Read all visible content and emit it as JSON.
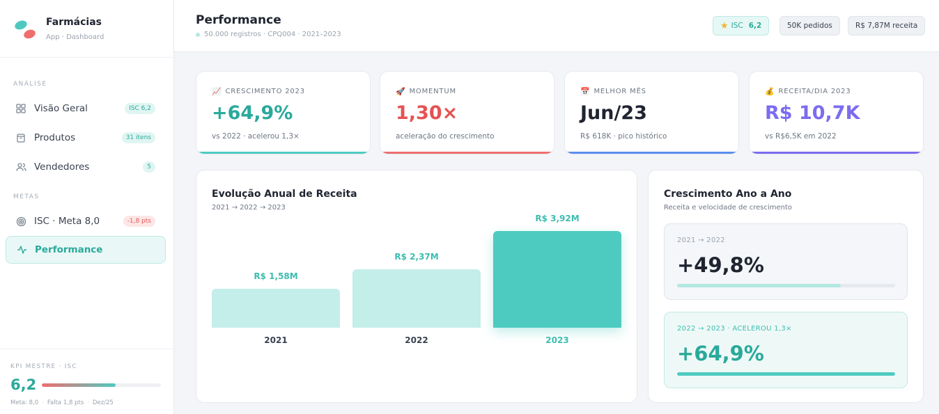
{
  "brand": {
    "name": "Farmácias",
    "subtitle": "App · Dashboard",
    "logo_icon": "pill-logo-icon"
  },
  "sidebar": {
    "sections": {
      "analise": "ANÁLISE",
      "metas": "METAS"
    },
    "items": [
      {
        "label": "Visão Geral",
        "icon": "grid-icon",
        "badge": "ISC 6,2",
        "badge_tone": "teal"
      },
      {
        "label": "Produtos",
        "icon": "package-icon",
        "badge": "31 itens",
        "badge_tone": "teal"
      },
      {
        "label": "Vendedores",
        "icon": "users-icon",
        "badge": "5",
        "badge_tone": "teal"
      },
      {
        "label": "ISC · Meta 8,0",
        "icon": "target-icon",
        "badge": "-1,8 pts",
        "badge_tone": "red"
      },
      {
        "label": "Performance",
        "icon": "activity-icon",
        "badge": "",
        "active": true
      }
    ],
    "kpi": {
      "label": "KPI MESTRE · ISC",
      "value": "6,2",
      "progress": 0.62,
      "meta": "Meta: 8,0",
      "falta": "Falta 1,8 pts",
      "period": "Dez/25"
    }
  },
  "header": {
    "title": "Performance",
    "subtitle": "50.000 registros · CPQ004 · 2021–2023",
    "chips": {
      "isc_label": "ISC",
      "isc_value": "6,2",
      "pedidos": "50K pedidos",
      "receita": "R$ 7,87M receita"
    }
  },
  "stats": [
    {
      "emoji": "📈",
      "label": "CRESCIMENTO 2023",
      "value": "+64,9%",
      "note": "vs 2022 · acelerou 1,3×",
      "color": "#2aa99b",
      "accent": "#4ecbc0"
    },
    {
      "emoji": "🚀",
      "label": "MOMENTUM",
      "value": "1,30×",
      "note": "aceleração do crescimento",
      "color": "#e55353",
      "accent": "#ee6e6e"
    },
    {
      "emoji": "📅",
      "label": "MELHOR MÊS",
      "value": "Jun/23",
      "note": "R$ 618K · pico histórico",
      "color": "#1f2430",
      "accent": "#5b8def"
    },
    {
      "emoji": "💰",
      "label": "RECEITA/DIA 2023",
      "value": "R$ 10,7K",
      "note": "vs R$6,5K em 2022",
      "color": "#7b6cf0",
      "accent": "#7b6cf0"
    }
  ],
  "chart": {
    "title": "Evolução Anual de Receita",
    "subtitle": "2021 → 2022 → 2023"
  },
  "chart_data": {
    "type": "bar",
    "categories": [
      "2021",
      "2022",
      "2023"
    ],
    "values": [
      1.58,
      2.37,
      3.92
    ],
    "data_labels": [
      "R$ 1,58M",
      "R$ 2,37M",
      "R$ 3,92M"
    ],
    "unit": "R$ milhões",
    "ylim": [
      0,
      4.5
    ],
    "grid": false,
    "colors": [
      "#c4eeea",
      "#c4eeea",
      "#4ecbc0"
    ]
  },
  "growth": {
    "title": "Crescimento Ano a Ano",
    "subtitle": "Receita e velocidade de crescimento",
    "items": [
      {
        "label": "2021 → 2022",
        "value": "+49,8%",
        "progress": 0.75
      },
      {
        "label": "2022 → 2023 · ACELEROU 1,3×",
        "value": "+64,9%",
        "progress": 1.0
      }
    ]
  }
}
